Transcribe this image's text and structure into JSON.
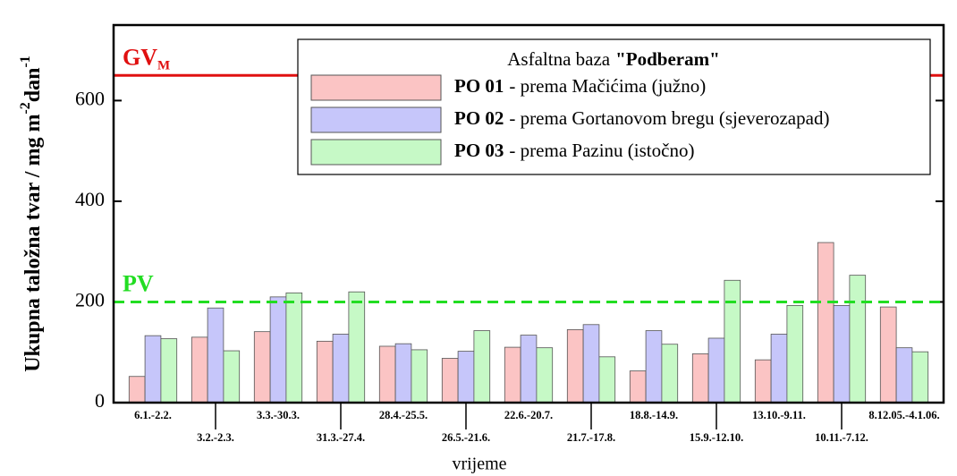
{
  "chart_data": {
    "type": "bar",
    "ylabel_parts": [
      {
        "text": "Ukupna taložna tvar / mg m"
      },
      {
        "text": "-2",
        "sup": true
      },
      {
        "text": "dan"
      },
      {
        "text": "-1",
        "sup": true
      }
    ],
    "xlabel": "vrijeme",
    "legend_title": "Asfaltna baza",
    "legend_title_bold": "\"Podberam\"",
    "categories": [
      "6.1.-2.2.",
      "3.2.-2.3.",
      "3.3.-30.3.",
      "31.3.-27.4.",
      "28.4.-25.5.",
      "26.5.-21.6.",
      "22.6.-20.7.",
      "21.7.-17.8.",
      "18.8.-14.9.",
      "15.9.-12.10.",
      "13.10.-9.11.",
      "10.11.-7.12.",
      "8.12.05.-4.1.06."
    ],
    "series": [
      {
        "name": "PO 01",
        "description": "- prema Mačićima (južno)",
        "color": "#fbc4c4",
        "values": [
          52,
          130,
          141,
          122,
          112,
          88,
          110,
          145,
          63,
          97,
          85,
          318,
          190
        ]
      },
      {
        "name": "PO 02",
        "description": "- prema Gortanovom bregu (sjeverozapad)",
        "color": "#c6c6fa",
        "values": [
          133,
          188,
          210,
          136,
          117,
          102,
          134,
          155,
          143,
          128,
          136,
          193,
          109
        ]
      },
      {
        "name": "PO 03",
        "description": "- prema Pazinu (istočno)",
        "color": "#c6f9c6",
        "values": [
          127,
          103,
          218,
          220,
          105,
          143,
          109,
          91,
          116,
          243,
          193,
          253,
          101
        ]
      }
    ],
    "reference_lines": [
      {
        "value": 650,
        "label": "GV",
        "sub": "M",
        "color": "#e01010",
        "style": "solid"
      },
      {
        "value": 200,
        "label": "PV",
        "color": "#22dd22",
        "style": "dashed"
      }
    ],
    "ylim": [
      0,
      750
    ],
    "yticks": [
      0,
      200,
      400,
      600
    ]
  }
}
